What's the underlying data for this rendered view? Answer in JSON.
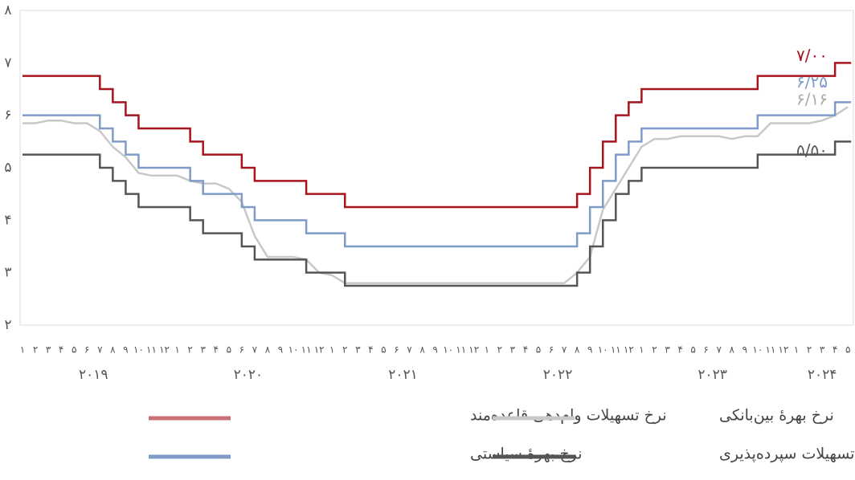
{
  "chart_data": {
    "type": "line",
    "categories": [
      "۱",
      "۲",
      "۳",
      "۴",
      "۵",
      "۶",
      "۷",
      "۸",
      "۹",
      "۱۰",
      "۱۱",
      "۱۲",
      "۱",
      "۲",
      "۳",
      "۴",
      "۵",
      "۶",
      "۷",
      "۸",
      "۹",
      "۱۰",
      "۱۱",
      "۱۲",
      "۱",
      "۲",
      "۳",
      "۴",
      "۵",
      "۶",
      "۷",
      "۸",
      "۹",
      "۱۰",
      "۱۱",
      "۱۲",
      "۱",
      "۲",
      "۳",
      "۴",
      "۵",
      "۶",
      "۷",
      "۸",
      "۹",
      "۱۰",
      "۱۱",
      "۱۲",
      "۱",
      "۲",
      "۳",
      "۴",
      "۵",
      "۶",
      "۷",
      "۸",
      "۹",
      "۱۰",
      "۱۱",
      "۱۲",
      "۱",
      "۲",
      "۳",
      "۴",
      "۵"
    ],
    "years": [
      "۲۰۱۹",
      "۲۰۲۰",
      "۲۰۲۱",
      "۲۰۲۲",
      "۲۰۲۳",
      "۲۰۲۴"
    ],
    "ylim": [
      2,
      8
    ],
    "yticks": [
      {
        "value": 2,
        "label": "۲"
      },
      {
        "value": 3,
        "label": "۳"
      },
      {
        "value": 4,
        "label": "۴"
      },
      {
        "value": 5,
        "label": "۵"
      },
      {
        "value": 6,
        "label": "۶"
      },
      {
        "value": 7,
        "label": "۷"
      },
      {
        "value": 8,
        "label": "۸"
      }
    ],
    "series": [
      {
        "name": "نرخ تسهیلات وام‌دهی قاعده‌مند",
        "color": "#a8141c",
        "step": true,
        "end_label": "۷/۰۰",
        "values": [
          6.75,
          6.75,
          6.75,
          6.75,
          6.75,
          6.75,
          6.5,
          6.25,
          6,
          5.75,
          5.75,
          5.75,
          5.75,
          5.5,
          5.25,
          5.25,
          5.25,
          5,
          4.75,
          4.75,
          4.75,
          4.75,
          4.5,
          4.5,
          4.5,
          4.25,
          4.25,
          4.25,
          4.25,
          4.25,
          4.25,
          4.25,
          4.25,
          4.25,
          4.25,
          4.25,
          4.25,
          4.25,
          4.25,
          4.25,
          4.25,
          4.25,
          4.25,
          4.5,
          5,
          5.5,
          6,
          6.25,
          6.5,
          6.5,
          6.5,
          6.5,
          6.5,
          6.5,
          6.5,
          6.5,
          6.5,
          6.75,
          6.75,
          6.75,
          6.75,
          6.75,
          6.75,
          7,
          7
        ]
      },
      {
        "name": "نرخ بهرهٔ سیاستی",
        "color": "#7f9cc9",
        "step": true,
        "end_label": "۶/۲۵",
        "values": [
          6,
          6,
          6,
          6,
          6,
          6,
          5.75,
          5.5,
          5.25,
          5,
          5,
          5,
          5,
          4.75,
          4.5,
          4.5,
          4.5,
          4.25,
          4,
          4,
          4,
          4,
          3.75,
          3.75,
          3.75,
          3.5,
          3.5,
          3.5,
          3.5,
          3.5,
          3.5,
          3.5,
          3.5,
          3.5,
          3.5,
          3.5,
          3.5,
          3.5,
          3.5,
          3.5,
          3.5,
          3.5,
          3.5,
          3.75,
          4.25,
          4.75,
          5.25,
          5.5,
          5.75,
          5.75,
          5.75,
          5.75,
          5.75,
          5.75,
          5.75,
          5.75,
          5.75,
          6,
          6,
          6,
          6,
          6,
          6,
          6.25,
          6.25
        ]
      },
      {
        "name": "نرخ تسهیلات سپرده‌پذیری",
        "color": "#555555",
        "step": true,
        "end_label": "۵/۵۰",
        "values": [
          5.25,
          5.25,
          5.25,
          5.25,
          5.25,
          5.25,
          5,
          4.75,
          4.5,
          4.25,
          4.25,
          4.25,
          4.25,
          4,
          3.75,
          3.75,
          3.75,
          3.5,
          3.25,
          3.25,
          3.25,
          3.25,
          3,
          3,
          3,
          2.75,
          2.75,
          2.75,
          2.75,
          2.75,
          2.75,
          2.75,
          2.75,
          2.75,
          2.75,
          2.75,
          2.75,
          2.75,
          2.75,
          2.75,
          2.75,
          2.75,
          2.75,
          3,
          3.5,
          4,
          4.5,
          4.75,
          5,
          5,
          5,
          5,
          5,
          5,
          5,
          5,
          5,
          5.25,
          5.25,
          5.25,
          5.25,
          5.25,
          5.25,
          5.5,
          5.5
        ]
      },
      {
        "name": "نرخ بهرهٔ بین‌بانکی",
        "color": "#c8c8c8",
        "step": false,
        "end_label": "۶/۱۶",
        "values": [
          5.85,
          5.85,
          5.9,
          5.9,
          5.85,
          5.85,
          5.7,
          5.4,
          5.2,
          4.9,
          4.85,
          4.85,
          4.85,
          4.75,
          4.7,
          4.7,
          4.6,
          4.35,
          3.7,
          3.3,
          3.3,
          3.3,
          3.25,
          3.0,
          2.95,
          2.8,
          2.8,
          2.8,
          2.8,
          2.8,
          2.8,
          2.8,
          2.8,
          2.8,
          2.8,
          2.8,
          2.8,
          2.8,
          2.8,
          2.8,
          2.8,
          2.8,
          2.8,
          3.0,
          3.3,
          4.2,
          4.6,
          5.0,
          5.4,
          5.55,
          5.55,
          5.6,
          5.6,
          5.6,
          5.6,
          5.55,
          5.6,
          5.6,
          5.85,
          5.85,
          5.85,
          5.85,
          5.9,
          6.0,
          6.16
        ]
      }
    ]
  }
}
